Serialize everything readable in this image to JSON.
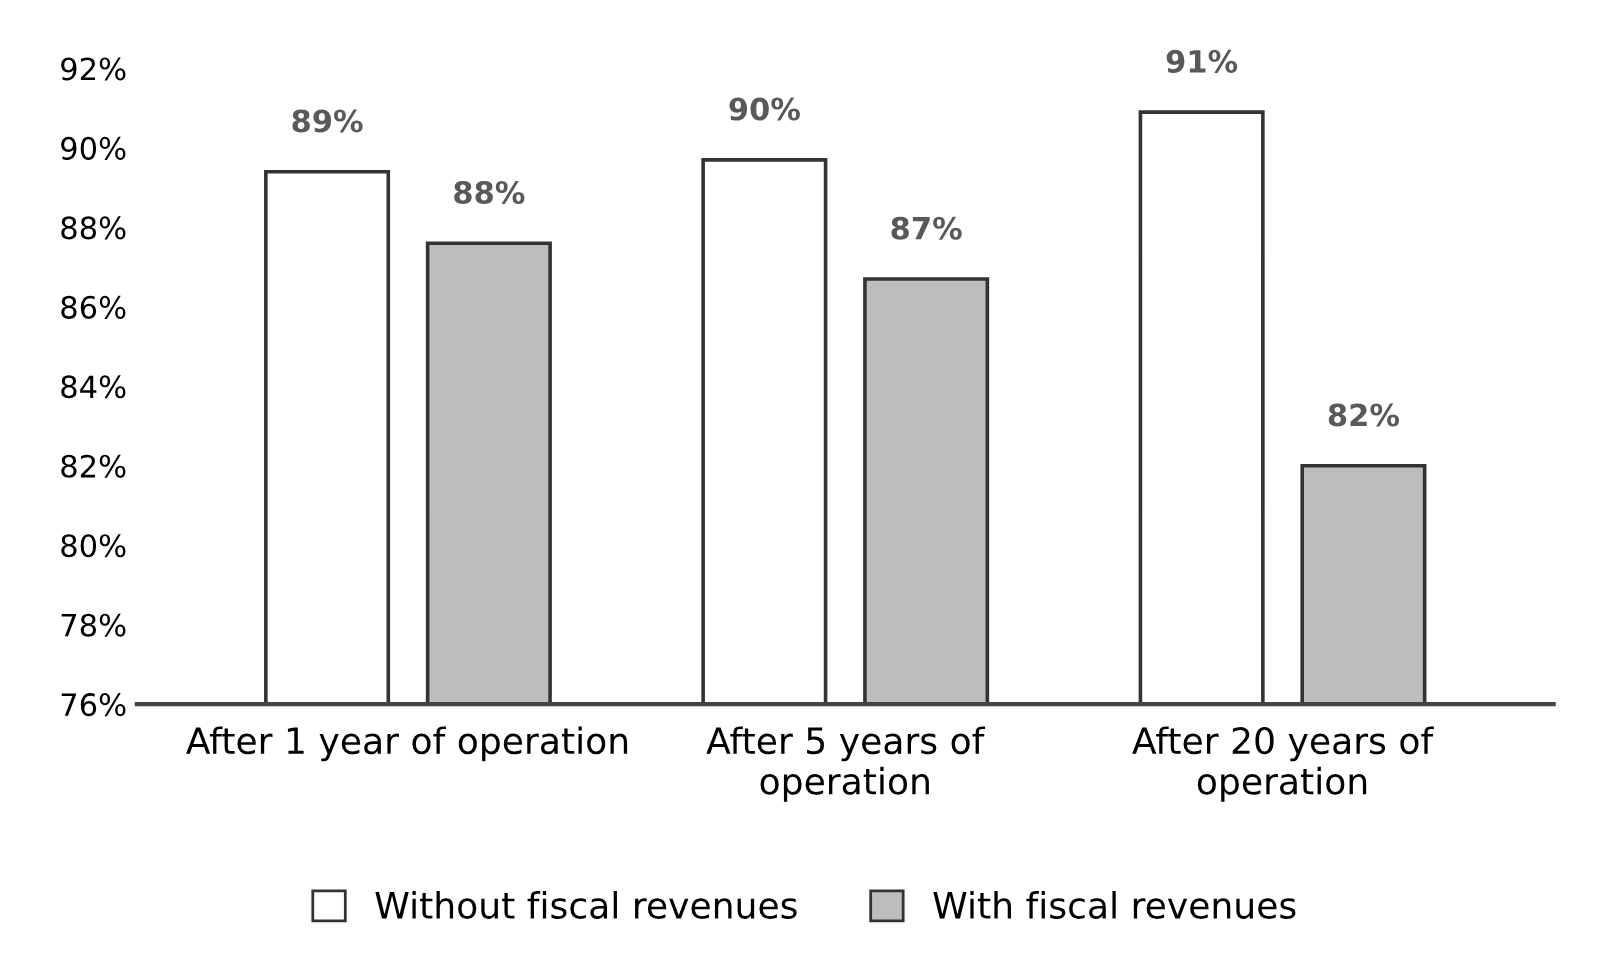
{
  "chart_data": {
    "type": "bar",
    "categories": [
      "After 1 year of operation",
      "After 5 years of\noperation",
      "After 20 years of\noperation"
    ],
    "series": [
      {
        "name": "Without fiscal revenues",
        "color": "#ffffff",
        "values": [
          89.4,
          89.7,
          90.9
        ],
        "value_labels": [
          "89%",
          "90%",
          "91%"
        ]
      },
      {
        "name": "With fiscal revenues",
        "color": "#bdbdbd",
        "values": [
          87.6,
          86.7,
          82.0
        ],
        "value_labels": [
          "88%",
          "87%",
          "82%"
        ]
      }
    ],
    "ylim": [
      76,
      92
    ],
    "yticks": [
      {
        "value": 76,
        "label": "76%"
      },
      {
        "value": 78,
        "label": "78%"
      },
      {
        "value": 80,
        "label": "80%"
      },
      {
        "value": 82,
        "label": "82%"
      },
      {
        "value": 84,
        "label": "84%"
      },
      {
        "value": 86,
        "label": "86%"
      },
      {
        "value": 88,
        "label": "88%"
      },
      {
        "value": 90,
        "label": "90%"
      },
      {
        "value": 92,
        "label": "92%"
      }
    ],
    "grid": false,
    "legend": "bottom"
  }
}
